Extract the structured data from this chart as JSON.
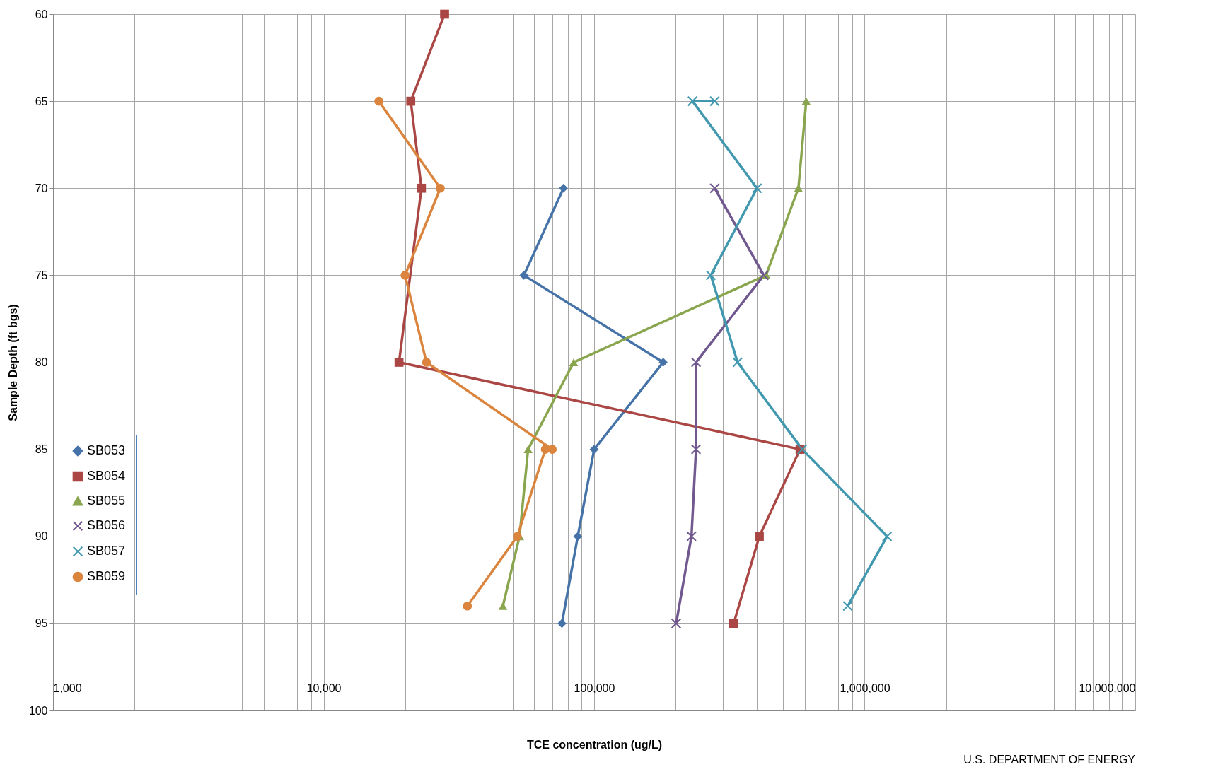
{
  "chart_data": {
    "type": "line",
    "xlabel": "TCE concentration (ug/L)",
    "ylabel": "Sample Depth (ft bgs)",
    "annotations": [
      "U.S. DEPARTMENT OF ENERGY"
    ],
    "log": "x",
    "grid": true,
    "legend": "bottom left",
    "xlim": [
      1000,
      10000000
    ],
    "xticks": [
      {
        "value": 1000,
        "label": "1,000"
      },
      {
        "value": 2000,
        "label": null
      },
      {
        "value": 3000,
        "label": null
      },
      {
        "value": 4000,
        "label": null
      },
      {
        "value": 5000,
        "label": null
      },
      {
        "value": 6000,
        "label": null
      },
      {
        "value": 7000,
        "label": null
      },
      {
        "value": 8000,
        "label": null
      },
      {
        "value": 9000,
        "label": null
      },
      {
        "value": 10000,
        "label": "10,000"
      },
      {
        "value": 20000,
        "label": null
      },
      {
        "value": 30000,
        "label": null
      },
      {
        "value": 40000,
        "label": null
      },
      {
        "value": 50000,
        "label": null
      },
      {
        "value": 60000,
        "label": null
      },
      {
        "value": 70000,
        "label": null
      },
      {
        "value": 80000,
        "label": null
      },
      {
        "value": 90000,
        "label": null
      },
      {
        "value": 100000,
        "label": "100,000"
      },
      {
        "value": 200000,
        "label": null
      },
      {
        "value": 300000,
        "label": null
      },
      {
        "value": 400000,
        "label": null
      },
      {
        "value": 500000,
        "label": null
      },
      {
        "value": 600000,
        "label": null
      },
      {
        "value": 700000,
        "label": null
      },
      {
        "value": 800000,
        "label": null
      },
      {
        "value": 900000,
        "label": null
      },
      {
        "value": 1000000,
        "label": "1,000,000"
      },
      {
        "value": 2000000,
        "label": null
      },
      {
        "value": 3000000,
        "label": null
      },
      {
        "value": 4000000,
        "label": null
      },
      {
        "value": 5000000,
        "label": null
      },
      {
        "value": 6000000,
        "label": null
      },
      {
        "value": 7000000,
        "label": null
      },
      {
        "value": 8000000,
        "label": null
      },
      {
        "value": 9000000,
        "label": null
      },
      {
        "value": 10000000,
        "label": "10,000,000"
      }
    ],
    "ylim": [
      100,
      60
    ],
    "yticks": [
      60,
      65,
      70,
      75,
      80,
      85,
      90,
      95,
      100
    ],
    "series": [
      {
        "name": "SB053",
        "color": "#4572a7",
        "marker": "diamond",
        "x": [
          77000,
          55000,
          180000,
          100000,
          87000,
          76000
        ],
        "values": [
          70,
          75,
          80,
          85,
          90,
          95
        ]
      },
      {
        "name": "SB054",
        "color": "#aa4643",
        "marker": "square",
        "x": [
          28000,
          21000,
          23000,
          19000,
          577000,
          408000,
          328000
        ],
        "values": [
          60,
          65,
          70,
          80,
          85,
          90,
          95
        ]
      },
      {
        "name": "SB055",
        "color": "#89a54e",
        "marker": "triangle",
        "x": [
          608000,
          569000,
          432000,
          84000,
          57000,
          53000,
          46000
        ],
        "values": [
          65,
          70,
          75,
          80,
          85,
          90,
          94
        ]
      },
      {
        "name": "SB056",
        "color": "#71588f",
        "marker": "cross",
        "x": [
          279000,
          424000,
          238000,
          238000,
          229000,
          201000
        ],
        "values": [
          70,
          75,
          80,
          85,
          90,
          95
        ]
      },
      {
        "name": "SB057",
        "color": "#4198af",
        "marker": "cross",
        "x": [
          279000,
          231000,
          400000,
          270000,
          339000,
          588000,
          1210000,
          866000
        ],
        "values": [
          65,
          65,
          70,
          75,
          80,
          85,
          90,
          94
        ]
      },
      {
        "name": "SB059",
        "color": "#db843d",
        "marker": "circle",
        "x": [
          16000,
          27000,
          20000,
          24000,
          70000,
          66000,
          52000,
          34000
        ],
        "values": [
          65,
          70,
          75,
          80,
          85,
          85,
          90,
          94
        ]
      }
    ]
  }
}
